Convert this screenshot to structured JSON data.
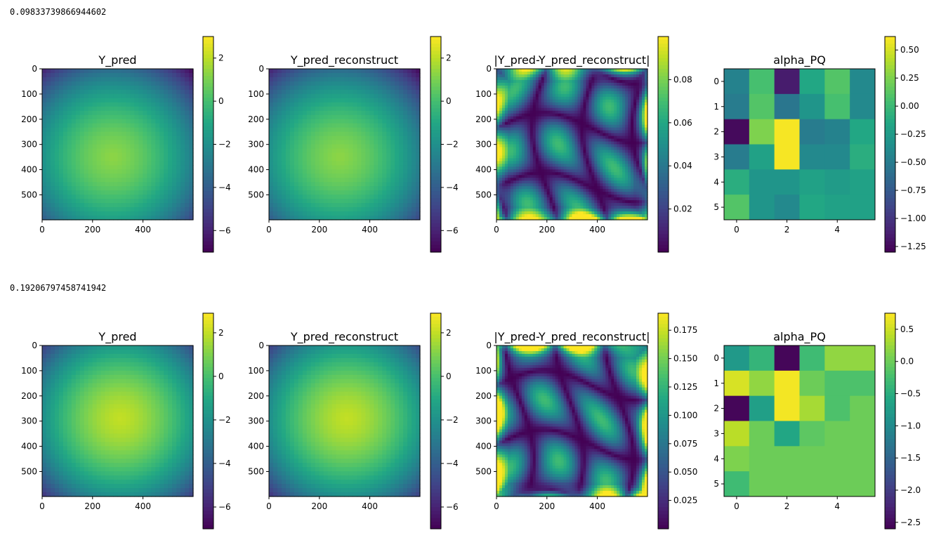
{
  "rows": [
    {
      "printed_value": "0.09833739866944602",
      "charts": [
        {
          "type": "heatmap",
          "title": "Y_pred",
          "field": "radial",
          "center": [
            280,
            350
          ],
          "max_value": 1.3,
          "falloff_per_100": -0.53,
          "xlim": [
            0,
            599
          ],
          "ylim": [
            599,
            0
          ],
          "xticks": [
            "0",
            "200",
            "400"
          ],
          "xtick_values": [
            0,
            200,
            400
          ],
          "yticks": [
            "0",
            "100",
            "200",
            "300",
            "400",
            "500"
          ],
          "ytick_values": [
            0,
            100,
            200,
            300,
            400,
            500
          ],
          "colorbar": {
            "range": [
              -7.0,
              3.0
            ],
            "ticks": [
              "2",
              "0",
              "−2",
              "−4",
              "−6"
            ],
            "tick_values": [
              2,
              0,
              -2,
              -4,
              -6
            ]
          }
        },
        {
          "type": "heatmap",
          "title": "Y_pred_reconstruct",
          "field": "radial",
          "center": [
            280,
            350
          ],
          "max_value": 1.3,
          "falloff_per_100": -0.53,
          "xlim": [
            0,
            599
          ],
          "ylim": [
            599,
            0
          ],
          "xticks": [
            "0",
            "200",
            "400"
          ],
          "xtick_values": [
            0,
            200,
            400
          ],
          "yticks": [
            "0",
            "100",
            "200",
            "300",
            "400",
            "500"
          ],
          "ytick_values": [
            0,
            100,
            200,
            300,
            400,
            500
          ],
          "colorbar": {
            "range": [
              -7.0,
              3.0
            ],
            "ticks": [
              "2",
              "0",
              "−2",
              "−4",
              "−6"
            ],
            "tick_values": [
              2,
              0,
              -2,
              -4,
              -6
            ]
          }
        },
        {
          "type": "heatmap",
          "title": "|Y_pred-Y_pred_reconstruct|",
          "field": "wavy",
          "phase": 0.0,
          "xlim": [
            0,
            599
          ],
          "ylim": [
            599,
            0
          ],
          "xticks": [
            "0",
            "200",
            "400"
          ],
          "xtick_values": [
            0,
            200,
            400
          ],
          "yticks": [
            "0",
            "100",
            "200",
            "300",
            "400",
            "500"
          ],
          "ytick_values": [
            0,
            100,
            200,
            300,
            400,
            500
          ],
          "colorbar": {
            "range": [
              0.0,
              0.1
            ],
            "ticks": [
              "0.08",
              "0.06",
              "0.04",
              "0.02"
            ],
            "tick_values": [
              0.08,
              0.06,
              0.04,
              0.02
            ]
          }
        },
        {
          "type": "heatmap",
          "title": "alpha_PQ",
          "field": "matrix",
          "values": [
            [
              -0.45,
              0.05,
              -1.15,
              -0.15,
              0.1,
              -0.4
            ],
            [
              -0.5,
              0.1,
              -0.55,
              -0.3,
              0.05,
              -0.4
            ],
            [
              -1.25,
              0.25,
              0.6,
              -0.5,
              -0.45,
              -0.15
            ],
            [
              -0.5,
              -0.2,
              0.6,
              -0.4,
              -0.4,
              -0.1
            ],
            [
              -0.1,
              -0.3,
              -0.3,
              -0.2,
              -0.25,
              -0.2
            ],
            [
              0.1,
              -0.3,
              -0.4,
              -0.15,
              -0.2,
              -0.2
            ]
          ],
          "xlim": [
            -0.5,
            5.5
          ],
          "ylim": [
            5.5,
            -0.5
          ],
          "xticks": [
            "0",
            "2",
            "4"
          ],
          "xtick_values": [
            0,
            2,
            4
          ],
          "yticks": [
            "0",
            "1",
            "2",
            "3",
            "4",
            "5"
          ],
          "ytick_values": [
            0,
            1,
            2,
            3,
            4,
            5
          ],
          "colorbar": {
            "range": [
              -1.3,
              0.62
            ],
            "ticks": [
              "0.50",
              "0.25",
              "0.00",
              "−0.25",
              "−0.50",
              "−0.75",
              "−1.00",
              "−1.25"
            ],
            "tick_values": [
              0.5,
              0.25,
              0.0,
              -0.25,
              -0.5,
              -0.75,
              -1.0,
              -1.25
            ]
          }
        }
      ]
    },
    {
      "printed_value": "0.19206797458741942",
      "charts": [
        {
          "type": "heatmap",
          "title": "Y_pred",
          "field": "radial",
          "center": [
            310,
            290
          ],
          "max_value": 2.0,
          "falloff_per_100": -0.58,
          "xlim": [
            0,
            599
          ],
          "ylim": [
            599,
            0
          ],
          "xticks": [
            "0",
            "200",
            "400"
          ],
          "xtick_values": [
            0,
            200,
            400
          ],
          "yticks": [
            "0",
            "100",
            "200",
            "300",
            "400",
            "500"
          ],
          "ytick_values": [
            0,
            100,
            200,
            300,
            400,
            500
          ],
          "colorbar": {
            "range": [
              -7.0,
              2.9
            ],
            "ticks": [
              "2",
              "0",
              "−2",
              "−4",
              "−6"
            ],
            "tick_values": [
              2,
              0,
              -2,
              -4,
              -6
            ]
          }
        },
        {
          "type": "heatmap",
          "title": "Y_pred_reconstruct",
          "field": "radial",
          "center": [
            310,
            290
          ],
          "max_value": 2.0,
          "falloff_per_100": -0.58,
          "xlim": [
            0,
            599
          ],
          "ylim": [
            599,
            0
          ],
          "xticks": [
            "0",
            "200",
            "400"
          ],
          "xtick_values": [
            0,
            200,
            400
          ],
          "yticks": [
            "0",
            "100",
            "200",
            "300",
            "400",
            "500"
          ],
          "ytick_values": [
            0,
            100,
            200,
            300,
            400,
            500
          ],
          "colorbar": {
            "range": [
              -7.0,
              2.9
            ],
            "ticks": [
              "2",
              "0",
              "−2",
              "−4",
              "−6"
            ],
            "tick_values": [
              2,
              0,
              -2,
              -4,
              -6
            ]
          }
        },
        {
          "type": "heatmap",
          "title": "|Y_pred-Y_pred_reconstruct|",
          "field": "wavy",
          "phase": 1.7,
          "xlim": [
            0,
            599
          ],
          "ylim": [
            599,
            0
          ],
          "xticks": [
            "0",
            "200",
            "400"
          ],
          "xtick_values": [
            0,
            200,
            400
          ],
          "yticks": [
            "0",
            "100",
            "200",
            "300",
            "400",
            "500"
          ],
          "ytick_values": [
            0,
            100,
            200,
            300,
            400,
            500
          ],
          "colorbar": {
            "range": [
              0.0,
              0.19
            ],
            "ticks": [
              "0.175",
              "0.150",
              "0.125",
              "0.100",
              "0.075",
              "0.050",
              "0.025"
            ],
            "tick_values": [
              0.175,
              0.15,
              0.125,
              0.1,
              0.075,
              0.05,
              0.025
            ]
          }
        },
        {
          "type": "heatmap",
          "title": "alpha_PQ",
          "field": "matrix",
          "values": [
            [
              -0.8,
              -0.4,
              -2.55,
              -0.3,
              0.2,
              0.2
            ],
            [
              0.55,
              0.2,
              0.7,
              0.0,
              -0.2,
              -0.2
            ],
            [
              -2.55,
              -0.7,
              0.7,
              0.3,
              -0.2,
              0.0
            ],
            [
              0.4,
              0.0,
              -0.6,
              -0.1,
              0.0,
              0.0
            ],
            [
              0.1,
              0.0,
              0.0,
              0.0,
              0.0,
              0.0
            ],
            [
              -0.3,
              0.0,
              0.0,
              0.0,
              0.0,
              0.0
            ]
          ],
          "xlim": [
            -0.5,
            5.5
          ],
          "ylim": [
            5.5,
            -0.5
          ],
          "xticks": [
            "0",
            "2",
            "4"
          ],
          "xtick_values": [
            0,
            2,
            4
          ],
          "yticks": [
            "0",
            "1",
            "2",
            "3",
            "4",
            "5"
          ],
          "ytick_values": [
            0,
            1,
            2,
            3,
            4,
            5
          ],
          "colorbar": {
            "range": [
              -2.6,
              0.75
            ],
            "ticks": [
              "0.5",
              "0.0",
              "−0.5",
              "−1.0",
              "−1.5",
              "−2.0",
              "−2.5"
            ],
            "tick_values": [
              0.5,
              0.0,
              -0.5,
              -1.0,
              -1.5,
              -2.0,
              -2.5
            ]
          }
        }
      ]
    }
  ]
}
